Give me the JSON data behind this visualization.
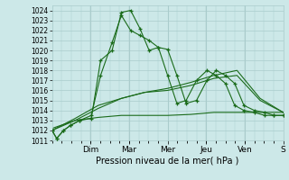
{
  "xlabel": "Pression niveau de la mer( hPa )",
  "bg_color": "#cce8e8",
  "grid_color": "#aacccc",
  "line_color": "#1a6b1a",
  "ylim": [
    1011,
    1024.5
  ],
  "ytick_min": 1011,
  "ytick_max": 1024,
  "day_labels": [
    "Dim",
    "Mar",
    "Mer",
    "Jeu",
    "Ven",
    "S"
  ],
  "day_x": [
    0.166,
    0.333,
    0.5,
    0.666,
    0.833,
    1.0
  ],
  "series": [
    {
      "x": [
        0.0,
        0.02,
        0.05,
        0.08,
        0.12,
        0.17,
        0.21,
        0.26,
        0.3,
        0.34,
        0.38,
        0.42,
        0.46,
        0.5,
        0.54,
        0.58,
        0.625,
        0.67,
        0.71,
        0.75,
        0.79,
        0.83,
        0.875,
        0.92,
        0.96,
        1.0
      ],
      "y": [
        1012.0,
        1011.2,
        1012.0,
        1012.5,
        1013.0,
        1013.2,
        1019.0,
        1020.0,
        1023.8,
        1024.0,
        1022.2,
        1020.0,
        1020.3,
        1020.1,
        1017.5,
        1014.7,
        1015.0,
        1017.0,
        1018.0,
        1017.5,
        1016.7,
        1014.5,
        1014.0,
        1013.8,
        1013.5,
        1013.5
      ],
      "marker": true
    },
    {
      "x": [
        0.0,
        0.02,
        0.05,
        0.08,
        0.12,
        0.17,
        0.21,
        0.26,
        0.3,
        0.34,
        0.38,
        0.42,
        0.46,
        0.5,
        0.54,
        0.58,
        0.625,
        0.67,
        0.71,
        0.75,
        0.79,
        0.83,
        0.875,
        0.92,
        0.96,
        1.0
      ],
      "y": [
        1012.0,
        1011.2,
        1012.0,
        1012.5,
        1013.0,
        1013.5,
        1017.5,
        1020.8,
        1023.5,
        1022.0,
        1021.5,
        1021.0,
        1020.3,
        1017.5,
        1014.7,
        1015.0,
        1017.0,
        1018.0,
        1017.5,
        1016.7,
        1014.5,
        1014.0,
        1013.8,
        1013.5,
        1013.5,
        1013.5
      ],
      "marker": true
    },
    {
      "x": [
        0.0,
        0.1,
        0.2,
        0.3,
        0.4,
        0.5,
        0.6,
        0.7,
        0.8,
        0.9,
        1.0
      ],
      "y": [
        1012.0,
        1013.0,
        1014.2,
        1015.2,
        1015.8,
        1016.0,
        1016.5,
        1017.2,
        1017.5,
        1015.0,
        1013.8
      ],
      "marker": false
    },
    {
      "x": [
        0.0,
        0.1,
        0.2,
        0.3,
        0.4,
        0.5,
        0.6,
        0.7,
        0.8,
        0.9,
        1.0
      ],
      "y": [
        1012.0,
        1013.2,
        1014.5,
        1015.2,
        1015.8,
        1016.2,
        1016.8,
        1017.5,
        1018.0,
        1015.2,
        1013.8
      ],
      "marker": false
    },
    {
      "x": [
        0.0,
        0.1,
        0.2,
        0.3,
        0.4,
        0.5,
        0.6,
        0.7,
        0.8,
        0.9,
        1.0
      ],
      "y": [
        1012.2,
        1013.0,
        1013.3,
        1013.5,
        1013.5,
        1013.5,
        1013.6,
        1013.8,
        1013.8,
        1013.8,
        1013.8
      ],
      "marker": false
    }
  ],
  "xlabel_fontsize": 7,
  "ytick_fontsize": 5.5,
  "xtick_fontsize": 6.5
}
